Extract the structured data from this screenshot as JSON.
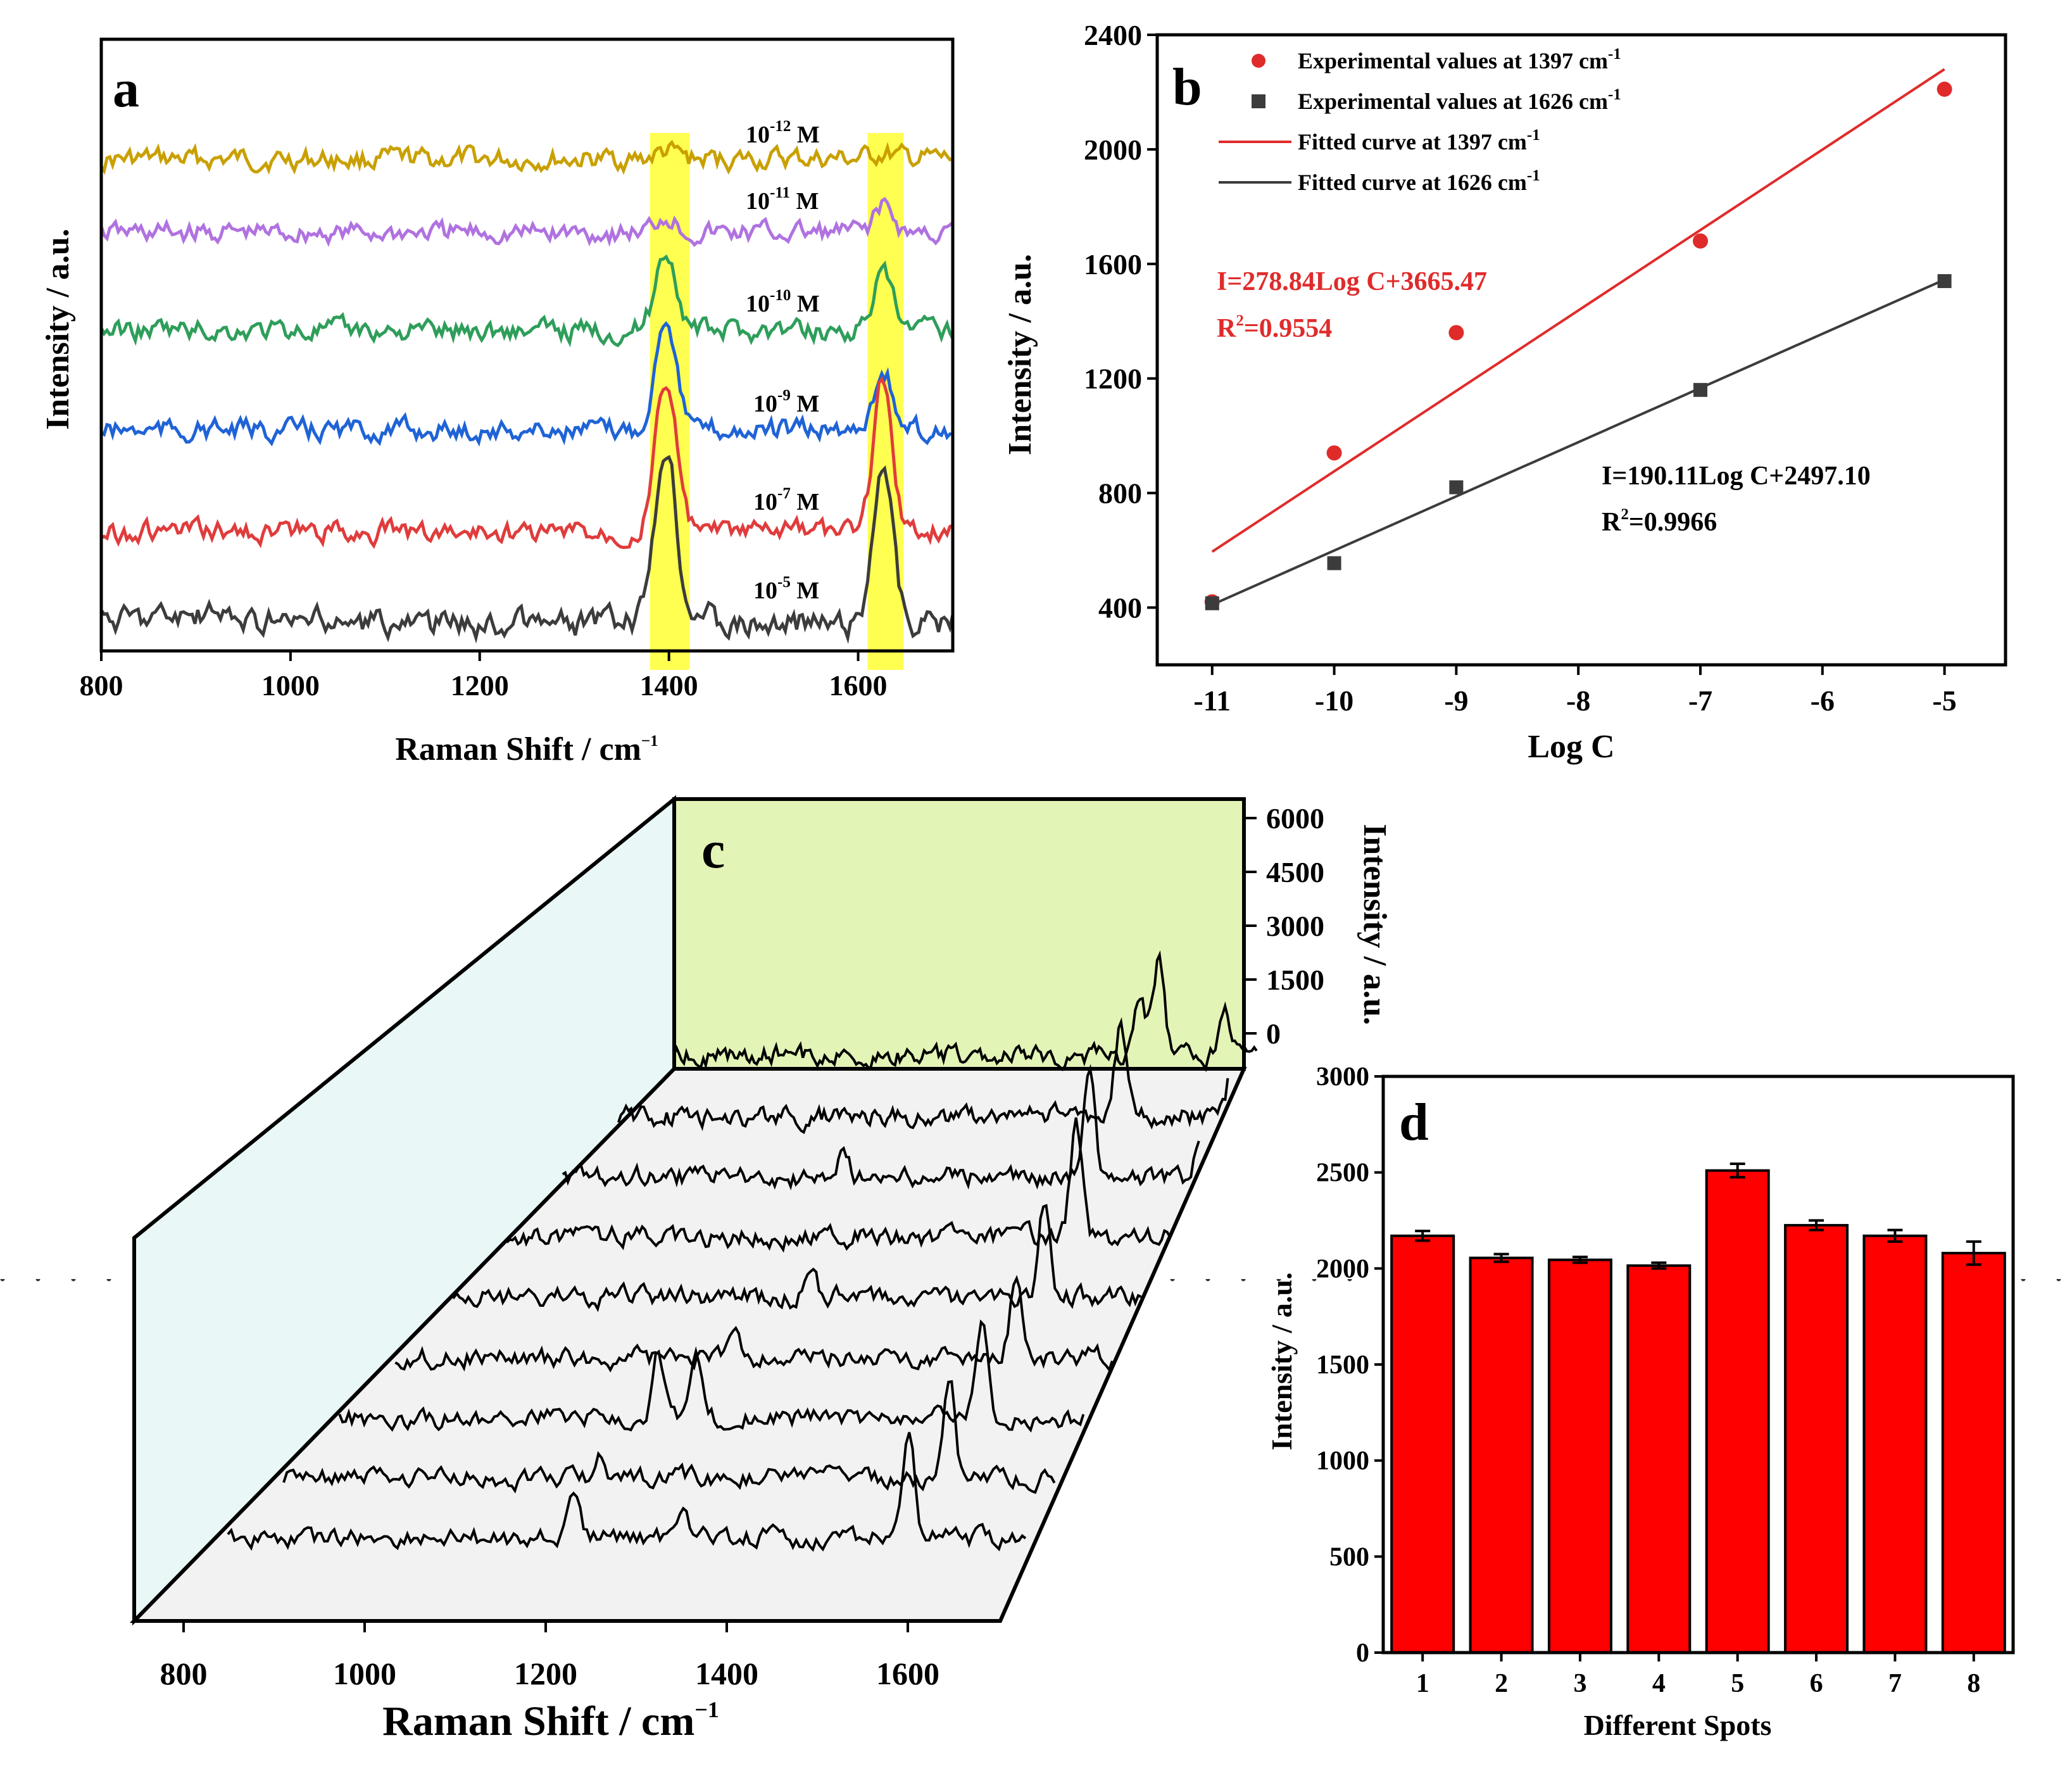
{
  "figure": {
    "panel_letters": [
      "a",
      "b",
      "c",
      "d"
    ]
  },
  "chart_data": [
    {
      "panel": "a",
      "type": "line",
      "title": "",
      "xlabel": "Raman Shift / cm",
      "xlabel_exp": "−1",
      "ylabel": "Intensity / a.u.",
      "xlim": [
        800,
        1700
      ],
      "xticks": [
        "800",
        "1000",
        "1200",
        "1400",
        "1600"
      ],
      "highlight_bands_cm": [
        [
          1380,
          1422
        ],
        [
          1610,
          1648
        ]
      ],
      "peaks_cm": [
        1397,
        1626
      ],
      "series": [
        {
          "base": "10",
          "exp": "-12",
          "unit": "M",
          "color": "#c9a000",
          "p1397": 0.05,
          "p1626": 0.04
        },
        {
          "base": "10",
          "exp": "-11",
          "unit": "M",
          "color": "#b072e0",
          "p1397": 0.12,
          "p1626": 0.18
        },
        {
          "base": "10",
          "exp": "-10",
          "unit": "M",
          "color": "#2e9e5a",
          "p1397": 0.55,
          "p1626": 0.38
        },
        {
          "base": "10",
          "exp": "-9",
          "unit": "M",
          "color": "#1f63d6",
          "p1397": 0.8,
          "p1626": 0.42
        },
        {
          "base": "10",
          "exp": "-7",
          "unit": "M",
          "color": "#e03c3c",
          "p1397": 1.05,
          "p1626": 1.05
        },
        {
          "base": "10",
          "exp": "-5",
          "unit": "M",
          "color": "#3c3c3c",
          "p1397": 1.25,
          "p1626": 1.15
        }
      ]
    },
    {
      "panel": "b",
      "type": "scatter",
      "xlabel": "Log C",
      "ylabel": "Intensity / a.u.",
      "xlim": [
        -11.45,
        -4.5
      ],
      "ylim": [
        200,
        2400
      ],
      "xticks": [
        "-11",
        "-10",
        "-9",
        "-8",
        "-7",
        "-6",
        "-5"
      ],
      "yticks": [
        "400",
        "800",
        "1200",
        "1600",
        "2000",
        "2400"
      ],
      "series": [
        {
          "name": "Experimental values at 1397 cm",
          "name_exp": "-1",
          "color": "#e02b2b",
          "x": [
            -11,
            -10,
            -9,
            -7,
            -5
          ],
          "y": [
            420,
            940,
            1360,
            1680,
            2210
          ]
        },
        {
          "name": "Experimental values at 1626 cm",
          "name_exp": "-1",
          "color": "#3c3c3c",
          "x": [
            -11,
            -10,
            -9,
            -7,
            -5
          ],
          "y": [
            415,
            555,
            820,
            1160,
            1540
          ]
        }
      ],
      "fits": [
        {
          "name": "Fitted curve at 1397 cm",
          "name_exp": "-1",
          "color": "#e02b2b",
          "x": [
            -11,
            -5
          ],
          "y": [
            595,
            2280
          ]
        },
        {
          "name": "Fitted curve at 1626 cm",
          "name_exp": "-1",
          "color": "#3c3c3c",
          "x": [
            -11,
            -5
          ],
          "y": [
            410,
            1545
          ]
        }
      ],
      "equations": [
        {
          "text": "I=278.84Log C+3665.47",
          "r2_prefix": "R",
          "r2_exp": "2",
          "r2_value": "=0.9554",
          "color": "#e02b2b"
        },
        {
          "text": "I=190.11Log C+2497.10",
          "r2_prefix": "R",
          "r2_exp": "2",
          "r2_value": "=0.9966",
          "color": "#000000"
        }
      ]
    },
    {
      "panel": "c",
      "type": "line",
      "subtype": "3d-waterfall",
      "xlabel": "Raman Shift / cm",
      "xlabel_exp": "−1",
      "xticks": [
        "800",
        "1000",
        "1200",
        "1400",
        "1600"
      ],
      "zlabel": "Intensity / a.u.",
      "zticks": [
        "0",
        "1500",
        "3000",
        "4500",
        "6000"
      ],
      "n_spectra": 9
    },
    {
      "panel": "d",
      "type": "bar",
      "xlabel": "Different Spots",
      "ylabel": "Intensity / a.u.",
      "ylim": [
        0,
        3000
      ],
      "yticks": [
        "0",
        "500",
        "1000",
        "1500",
        "2000",
        "2500",
        "3000"
      ],
      "categories": [
        "1",
        "2",
        "3",
        "4",
        "5",
        "6",
        "7",
        "8"
      ],
      "values": [
        2170,
        2055,
        2045,
        2015,
        2510,
        2225,
        2170,
        2080
      ],
      "errors": [
        25,
        20,
        15,
        15,
        35,
        25,
        30,
        60
      ],
      "color": "#ff0000"
    }
  ]
}
